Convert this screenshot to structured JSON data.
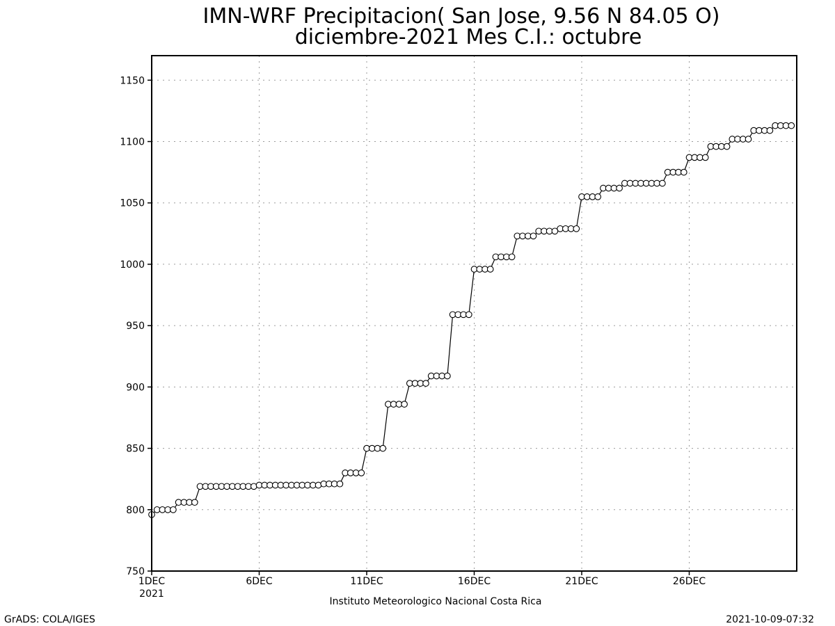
{
  "chart_data": {
    "type": "line",
    "title": "IMN-WRF  Precipitacion( San Jose, 9.56  N 84.05  O)",
    "subtitle": "diciembre-2021 Mes C.I.: octubre",
    "xlabel": "Instituto Meteorologico Nacional Costa Rica",
    "ylabel": "",
    "x_unit_note": "days from 1DEC 2021, 6-hourly steps",
    "xlim": [
      0,
      30
    ],
    "ylim": [
      750,
      1170
    ],
    "y_ticks": [
      "750",
      "800",
      "850",
      "900",
      "950",
      "1000",
      "1050",
      "1100",
      "1150"
    ],
    "x_ticks": [
      {
        "label": "1DEC",
        "sub": "2021",
        "x": 0
      },
      {
        "label": "6DEC",
        "sub": "",
        "x": 5
      },
      {
        "label": "11DEC",
        "sub": "",
        "x": 10
      },
      {
        "label": "16DEC",
        "sub": "",
        "x": 15
      },
      {
        "label": "21DEC",
        "sub": "",
        "x": 20
      },
      {
        "label": "26DEC",
        "sub": "",
        "x": 25
      }
    ],
    "grid": true,
    "step": 0.25,
    "values": [
      796,
      800,
      800,
      800,
      800,
      806,
      806,
      806,
      806,
      819,
      819,
      819,
      819,
      819,
      819,
      819,
      819,
      819,
      819,
      819,
      820,
      820,
      820,
      820,
      820,
      820,
      820,
      820,
      820,
      820,
      820,
      820,
      821,
      821,
      821,
      821,
      830,
      830,
      830,
      830,
      850,
      850,
      850,
      850,
      886,
      886,
      886,
      886,
      903,
      903,
      903,
      903,
      909,
      909,
      909,
      909,
      959,
      959,
      959,
      959,
      996,
      996,
      996,
      996,
      1006,
      1006,
      1006,
      1006,
      1023,
      1023,
      1023,
      1023,
      1027,
      1027,
      1027,
      1027,
      1029,
      1029,
      1029,
      1029,
      1055,
      1055,
      1055,
      1055,
      1062,
      1062,
      1062,
      1062,
      1066,
      1066,
      1066,
      1066,
      1066,
      1066,
      1066,
      1066,
      1075,
      1075,
      1075,
      1075,
      1087,
      1087,
      1087,
      1087,
      1096,
      1096,
      1096,
      1096,
      1102,
      1102,
      1102,
      1102,
      1109,
      1109,
      1109,
      1109,
      1113,
      1113,
      1113,
      1113
    ]
  },
  "footer": {
    "left": "GrADS: COLA/IGES",
    "right": "2021-10-09-07:32"
  }
}
